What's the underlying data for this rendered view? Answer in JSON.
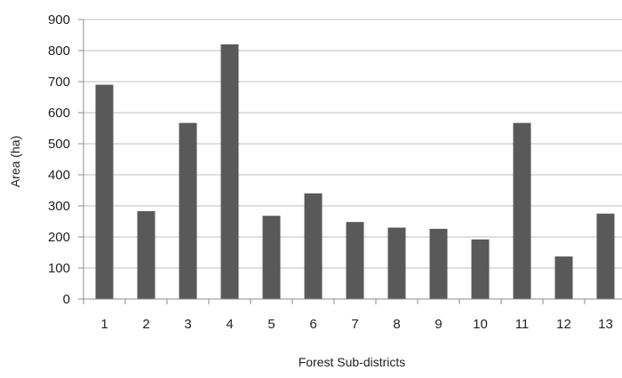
{
  "chart_data": {
    "type": "bar",
    "categories": [
      "1",
      "2",
      "3",
      "4",
      "5",
      "6",
      "7",
      "8",
      "9",
      "10",
      "11",
      "12",
      "13"
    ],
    "values": [
      690,
      283,
      567,
      820,
      268,
      340,
      248,
      230,
      226,
      192,
      567,
      137,
      275
    ],
    "xlabel": "Forest Sub-districts",
    "ylabel": "Area (ha)",
    "ylim": [
      0,
      900
    ],
    "yticks": [
      "0",
      "100",
      "200",
      "300",
      "400",
      "500",
      "600",
      "700",
      "800",
      "900"
    ],
    "grid": true,
    "legend": "none",
    "colors": {
      "bar": "#595959",
      "grid": "#bfbfbf",
      "axis": "#8c8c8c"
    }
  }
}
